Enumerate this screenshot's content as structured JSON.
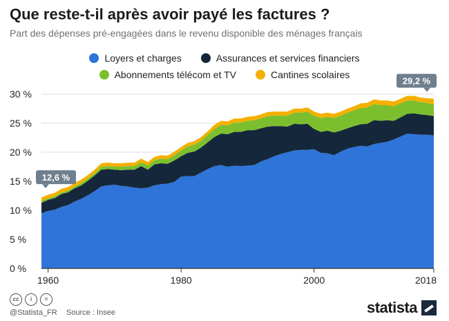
{
  "header": {
    "title": "Que reste-t-il après avoir payé les factures ?",
    "subtitle": "Part des dépenses pré-engagées dans le revenu disponible des ménages français"
  },
  "colors": {
    "loyers": "#2f74d8",
    "assurances": "#15273a",
    "telecom": "#7cbf2e",
    "cantines": "#f4b000",
    "grid": "#dcdcdc",
    "callout": "#6f7f8e"
  },
  "footer": {
    "handle": "@Statista_FR",
    "source": "Source : Insee",
    "brand": "statista"
  },
  "chart_data": {
    "type": "area",
    "stacked": true,
    "title": "Que reste-t-il après avoir payé les factures ?",
    "subtitle": "Part des dépenses pré-engagées dans le revenu disponible des ménages français",
    "xlabel": "",
    "ylabel": "",
    "xlim": [
      1959,
      2018
    ],
    "ylim": [
      0,
      30
    ],
    "grid": true,
    "legend_position": "top-center",
    "x_ticks": [
      1960,
      1980,
      2000,
      2018
    ],
    "y_ticks": [
      {
        "value": 0,
        "label": "0 %"
      },
      {
        "value": 5,
        "label": "5 %"
      },
      {
        "value": 10,
        "label": "10 %"
      },
      {
        "value": 15,
        "label": "15 %"
      },
      {
        "value": 20,
        "label": "20 %"
      },
      {
        "value": 25,
        "label": "25 %"
      },
      {
        "value": 30,
        "label": "30 %"
      }
    ],
    "x": [
      1959,
      1960,
      1961,
      1962,
      1963,
      1964,
      1965,
      1966,
      1967,
      1968,
      1969,
      1970,
      1971,
      1972,
      1973,
      1974,
      1975,
      1976,
      1977,
      1978,
      1979,
      1980,
      1981,
      1982,
      1983,
      1984,
      1985,
      1986,
      1987,
      1988,
      1989,
      1990,
      1991,
      1992,
      1993,
      1994,
      1995,
      1996,
      1997,
      1998,
      1999,
      2000,
      2001,
      2002,
      2003,
      2004,
      2005,
      2006,
      2007,
      2008,
      2009,
      2010,
      2011,
      2012,
      2013,
      2014,
      2015,
      2016,
      2017,
      2018
    ],
    "series": [
      {
        "name": "Loyers et charges",
        "color_key": "loyers",
        "values": [
          9.5,
          9.9,
          10.1,
          10.6,
          10.9,
          11.5,
          12.0,
          12.6,
          13.3,
          14.1,
          14.3,
          14.4,
          14.2,
          14.1,
          13.9,
          13.8,
          13.9,
          14.3,
          14.5,
          14.6,
          14.9,
          15.8,
          15.9,
          15.9,
          16.5,
          17.1,
          17.6,
          17.8,
          17.5,
          17.7,
          17.6,
          17.7,
          17.8,
          18.4,
          18.8,
          19.3,
          19.7,
          20.0,
          20.3,
          20.4,
          20.4,
          20.5,
          19.9,
          19.8,
          19.5,
          20.1,
          20.6,
          20.9,
          21.1,
          21.0,
          21.4,
          21.6,
          21.8,
          22.2,
          22.7,
          23.2,
          23.1,
          23.0,
          23.0,
          22.9
        ]
      },
      {
        "name": "Assurances et services financiers",
        "color_key": "assurances",
        "values": [
          1.8,
          1.9,
          2.0,
          2.2,
          2.2,
          2.3,
          2.3,
          2.5,
          2.7,
          2.9,
          2.8,
          2.6,
          2.7,
          2.9,
          3.1,
          3.8,
          3.1,
          3.6,
          3.6,
          3.4,
          3.7,
          3.5,
          4.0,
          4.2,
          4.3,
          4.6,
          5.0,
          5.4,
          5.6,
          5.8,
          5.9,
          6.1,
          6.0,
          5.7,
          5.6,
          5.2,
          4.8,
          4.4,
          4.6,
          4.4,
          4.5,
          3.5,
          3.6,
          3.9,
          3.9,
          3.6,
          3.5,
          3.6,
          3.7,
          3.9,
          4.1,
          3.8,
          3.7,
          3.2,
          3.3,
          3.4,
          3.6,
          3.5,
          3.4,
          3.3
        ]
      },
      {
        "name": "Abonnements télécom et TV",
        "color_key": "telecom",
        "values": [
          0.3,
          0.3,
          0.3,
          0.3,
          0.3,
          0.3,
          0.4,
          0.4,
          0.4,
          0.5,
          0.5,
          0.5,
          0.6,
          0.6,
          0.6,
          0.7,
          0.7,
          0.7,
          0.8,
          0.8,
          0.9,
          1.0,
          1.1,
          1.2,
          1.2,
          1.3,
          1.4,
          1.5,
          1.5,
          1.6,
          1.6,
          1.6,
          1.7,
          1.7,
          1.8,
          1.8,
          1.8,
          1.9,
          1.9,
          2.0,
          2.1,
          2.3,
          2.4,
          2.4,
          2.5,
          2.6,
          2.7,
          2.7,
          2.8,
          2.8,
          2.8,
          2.7,
          2.6,
          2.5,
          2.4,
          2.3,
          2.2,
          2.1,
          2.1,
          2.0
        ]
      },
      {
        "name": "Cantines scolaires",
        "color_key": "cantines",
        "values": [
          0.6,
          0.6,
          0.6,
          0.6,
          0.6,
          0.6,
          0.6,
          0.6,
          0.6,
          0.6,
          0.6,
          0.6,
          0.6,
          0.6,
          0.6,
          0.6,
          0.6,
          0.6,
          0.6,
          0.6,
          0.6,
          0.6,
          0.6,
          0.6,
          0.6,
          0.6,
          0.7,
          0.7,
          0.7,
          0.7,
          0.7,
          0.7,
          0.7,
          0.7,
          0.7,
          0.7,
          0.7,
          0.7,
          0.7,
          0.7,
          0.7,
          0.7,
          0.7,
          0.7,
          0.7,
          0.7,
          0.7,
          0.7,
          0.8,
          0.8,
          0.8,
          0.8,
          0.8,
          0.8,
          0.8,
          0.8,
          0.8,
          0.8,
          0.8,
          1.0
        ]
      }
    ],
    "annotations": [
      {
        "x": 1959,
        "y": 12.6,
        "label": "12,6 %"
      },
      {
        "x": 2018,
        "y": 29.2,
        "label": "29,2 %"
      }
    ]
  }
}
